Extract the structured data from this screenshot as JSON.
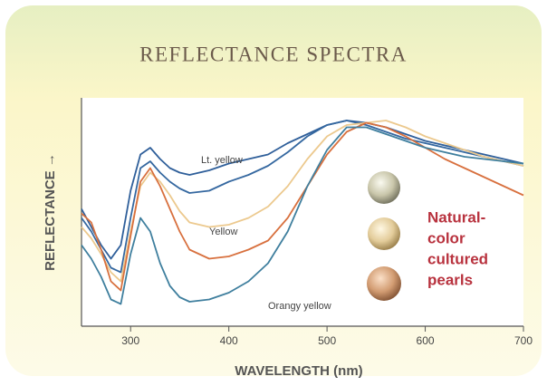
{
  "chart_data": {
    "type": "line",
    "title": "REFLECTANCE SPECTRA",
    "x_label": "WAVELENGTH (nm)",
    "y_label": "REFLECTANCE →",
    "x": [
      250,
      260,
      270,
      280,
      290,
      300,
      310,
      320,
      330,
      340,
      350,
      360,
      380,
      400,
      420,
      440,
      460,
      480,
      500,
      520,
      540,
      560,
      580,
      600,
      620,
      640,
      660,
      680,
      700
    ],
    "xlim": [
      250,
      700
    ],
    "xticks": [
      300,
      400,
      500,
      600,
      700
    ],
    "ylim": [
      0,
      100
    ],
    "series": [
      {
        "name": "Lt. yellow",
        "color": "#2f5f9a",
        "values": [
          51,
          43,
          35,
          29,
          35,
          59,
          75,
          78,
          73,
          69,
          67,
          66,
          68,
          71,
          73,
          75,
          80,
          84,
          88,
          90,
          89,
          87,
          84,
          81,
          79,
          77,
          75,
          73,
          71
        ]
      },
      {
        "color": "#3568a0",
        "values": [
          47,
          41,
          33,
          25,
          23,
          47,
          69,
          72,
          67,
          63,
          60,
          58,
          59,
          63,
          66,
          70,
          76,
          83,
          88,
          90,
          88,
          85,
          82,
          80,
          78,
          76,
          74,
          72,
          70
        ]
      },
      {
        "color": "#ecc98e",
        "values": [
          43,
          38,
          31,
          23,
          19,
          41,
          61,
          67,
          63,
          57,
          50,
          45,
          43,
          44,
          47,
          52,
          61,
          73,
          83,
          88,
          89,
          90,
          87,
          83,
          80,
          77,
          74,
          72,
          70
        ]
      },
      {
        "name": "Yellow",
        "color": "#d8703e",
        "values": [
          49,
          45,
          33,
          19,
          15,
          39,
          63,
          69,
          61,
          51,
          41,
          33,
          29,
          30,
          33,
          37,
          47,
          61,
          75,
          85,
          89,
          87,
          83,
          78,
          73,
          69,
          65,
          61,
          57
        ]
      },
      {
        "name": "Orangy yellow",
        "color": "#3f7f9e",
        "values": [
          35,
          29,
          21,
          11,
          9,
          31,
          47,
          41,
          27,
          17,
          12,
          10,
          11,
          14,
          19,
          27,
          41,
          61,
          77,
          87,
          87,
          84,
          81,
          78,
          76,
          74,
          73,
          72,
          71
        ]
      }
    ],
    "annotation": [
      "Natural-",
      "color",
      "cultured",
      "pearls"
    ]
  }
}
